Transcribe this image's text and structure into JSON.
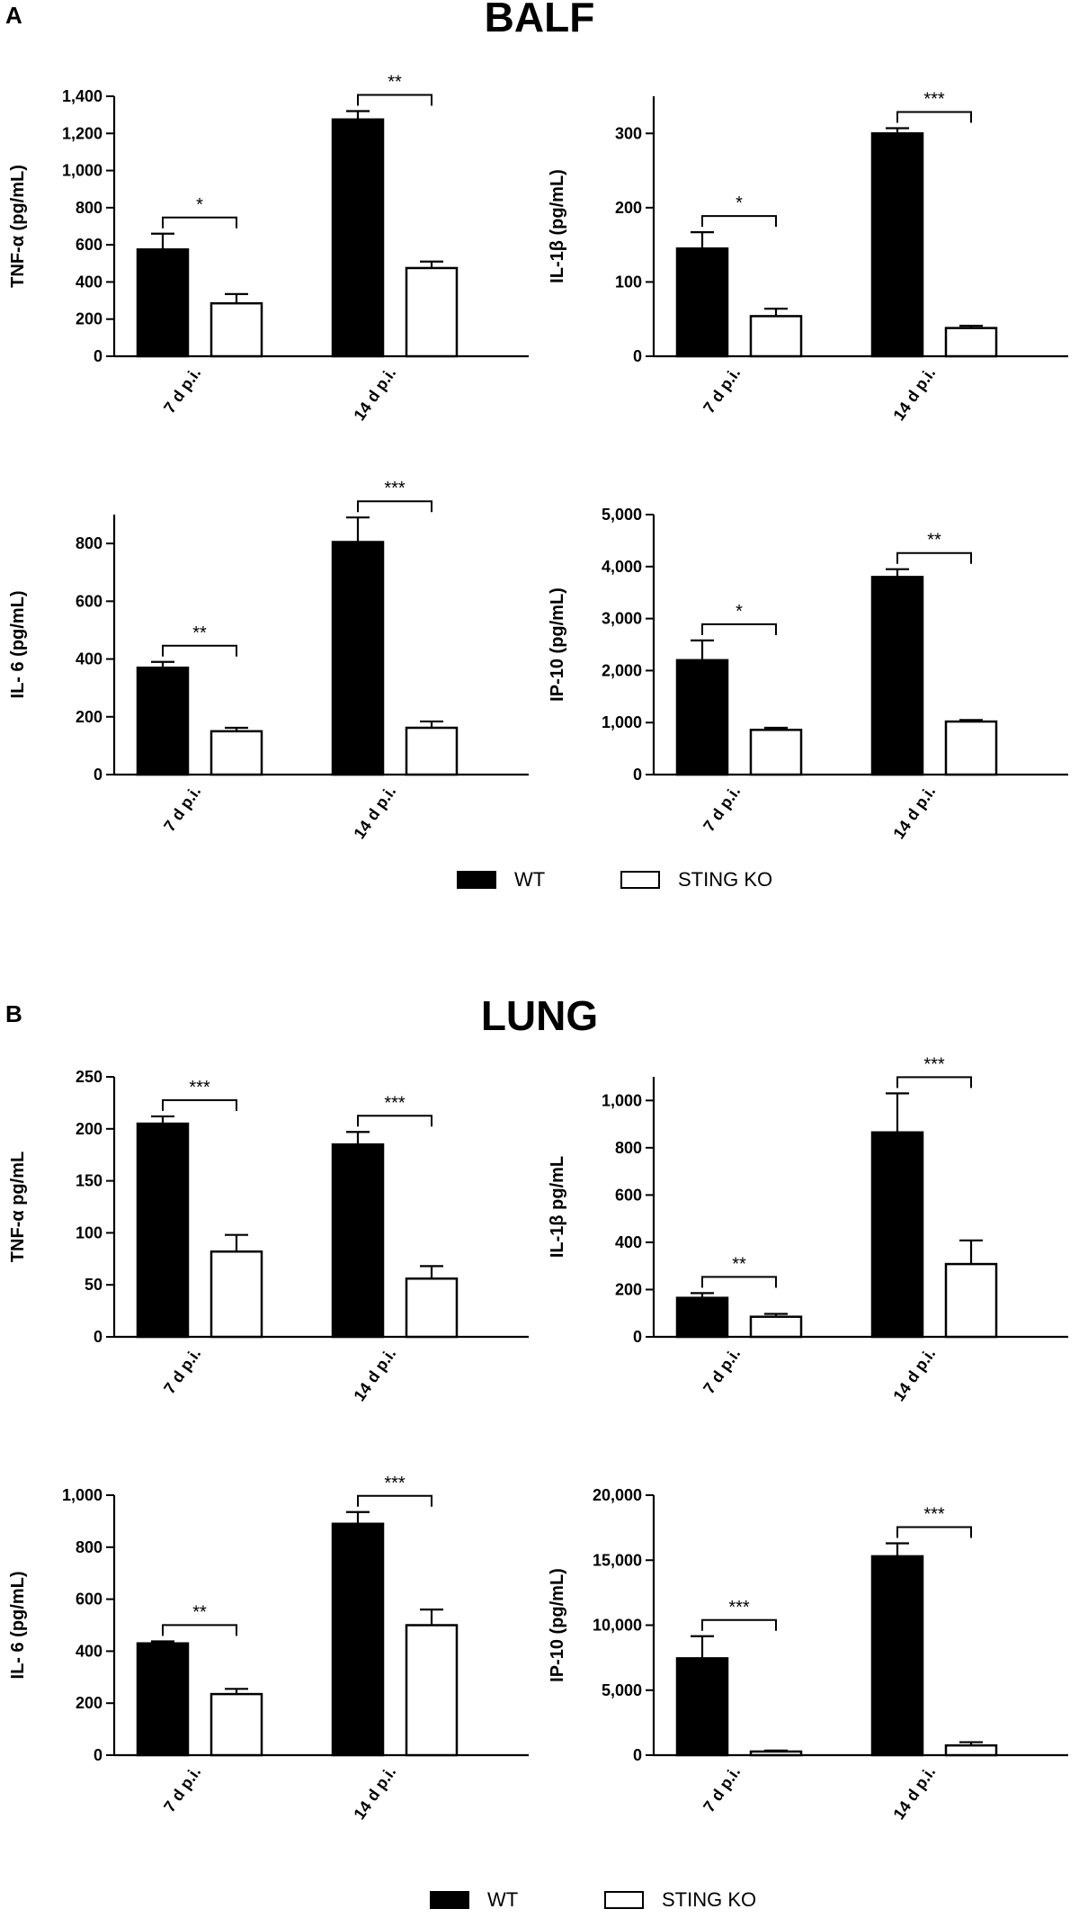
{
  "panels": [
    {
      "letter": "A",
      "title": "BALF"
    },
    {
      "letter": "B",
      "title": "LUNG"
    }
  ],
  "legend": {
    "wt": {
      "label": "WT",
      "color": "#000000"
    },
    "ko": {
      "label": "STING KO",
      "color": "#ffffff"
    }
  },
  "chart_data": [
    {
      "id": "balf-tnf",
      "type": "bar",
      "title": "",
      "xlabel": "",
      "ylabel": "TNF-α (pg/mL)",
      "categories": [
        "7 d p.i.",
        "14 d p.i."
      ],
      "ylim": [
        0,
        1400
      ],
      "yticks": [
        0,
        200,
        400,
        600,
        800,
        1000,
        1200,
        1400
      ],
      "ytick_labels": [
        "0",
        "200",
        "400",
        "600",
        "800",
        "1,000",
        "1,200",
        "1,400"
      ],
      "series": [
        {
          "name": "WT",
          "values": [
            575,
            1275
          ],
          "errors": [
            85,
            45
          ]
        },
        {
          "name": "STING KO",
          "values": [
            285,
            475
          ],
          "errors": [
            50,
            35
          ]
        }
      ],
      "significance": [
        "*",
        "**"
      ]
    },
    {
      "id": "balf-il1b",
      "type": "bar",
      "title": "",
      "xlabel": "",
      "ylabel": "IL-1β (pg/mL)",
      "categories": [
        "7 d p.i.",
        "14 d p.i."
      ],
      "ylim": [
        0,
        350
      ],
      "yticks": [
        0,
        100,
        200,
        300
      ],
      "ytick_labels": [
        "0",
        "100",
        "200",
        "300"
      ],
      "series": [
        {
          "name": "WT",
          "values": [
            145,
            300
          ],
          "errors": [
            22,
            7
          ]
        },
        {
          "name": "STING KO",
          "values": [
            54,
            38
          ],
          "errors": [
            10,
            3
          ]
        }
      ],
      "significance": [
        "*",
        "***"
      ]
    },
    {
      "id": "balf-il6",
      "type": "bar",
      "title": "",
      "xlabel": "",
      "ylabel": "IL- 6 (pg/mL)",
      "categories": [
        "7 d p.i.",
        "14 d p.i."
      ],
      "ylim": [
        0,
        900
      ],
      "yticks": [
        0,
        200,
        400,
        600,
        800
      ],
      "ytick_labels": [
        "0",
        "200",
        "400",
        "600",
        "800"
      ],
      "series": [
        {
          "name": "WT",
          "values": [
            370,
            805
          ],
          "errors": [
            20,
            85
          ]
        },
        {
          "name": "STING KO",
          "values": [
            150,
            162
          ],
          "errors": [
            12,
            22
          ]
        }
      ],
      "significance": [
        "**",
        "***"
      ]
    },
    {
      "id": "balf-ip10",
      "type": "bar",
      "title": "",
      "xlabel": "",
      "ylabel": "IP-10 (pg/mL)",
      "categories": [
        "7 d p.i.",
        "14 d p.i."
      ],
      "ylim": [
        0,
        5000
      ],
      "yticks": [
        0,
        1000,
        2000,
        3000,
        4000,
        5000
      ],
      "ytick_labels": [
        "0",
        "1,000",
        "2,000",
        "3,000",
        "4,000",
        "5,000"
      ],
      "series": [
        {
          "name": "WT",
          "values": [
            2200,
            3800
          ],
          "errors": [
            380,
            150
          ]
        },
        {
          "name": "STING KO",
          "values": [
            860,
            1020
          ],
          "errors": [
            40,
            30
          ]
        }
      ],
      "significance": [
        "*",
        "**"
      ]
    },
    {
      "id": "lung-tnf",
      "type": "bar",
      "title": "",
      "xlabel": "",
      "ylabel": "TNF-α pg/mL",
      "categories": [
        "7 d p.i.",
        "14 d p.i."
      ],
      "ylim": [
        0,
        250
      ],
      "yticks": [
        0,
        50,
        100,
        150,
        200,
        250
      ],
      "ytick_labels": [
        "0",
        "50",
        "100",
        "150",
        "200",
        "250"
      ],
      "series": [
        {
          "name": "WT",
          "values": [
            205,
            185
          ],
          "errors": [
            7,
            12
          ]
        },
        {
          "name": "STING KO",
          "values": [
            82,
            56
          ],
          "errors": [
            16,
            12
          ]
        }
      ],
      "significance": [
        "***",
        "***"
      ]
    },
    {
      "id": "lung-il1b",
      "type": "bar",
      "title": "",
      "xlabel": "",
      "ylabel": "IL-1β pg/mL",
      "categories": [
        "7 d p.i.",
        "14 d p.i."
      ],
      "ylim": [
        0,
        1100
      ],
      "yticks": [
        0,
        200,
        400,
        600,
        800,
        1000
      ],
      "ytick_labels": [
        "0",
        "200",
        "400",
        "600",
        "800",
        "1,000"
      ],
      "series": [
        {
          "name": "WT",
          "values": [
            165,
            865
          ],
          "errors": [
            20,
            165
          ]
        },
        {
          "name": "STING KO",
          "values": [
            85,
            308
          ],
          "errors": [
            12,
            100
          ]
        }
      ],
      "significance": [
        "**",
        "***"
      ]
    },
    {
      "id": "lung-il6",
      "type": "bar",
      "title": "",
      "xlabel": "",
      "ylabel": "IL- 6 (pg/mL)",
      "categories": [
        "7 d p.i.",
        "14 d p.i."
      ],
      "ylim": [
        0,
        1000
      ],
      "yticks": [
        0,
        200,
        400,
        600,
        800,
        1000
      ],
      "ytick_labels": [
        "0",
        "200",
        "400",
        "600",
        "800",
        "1,000"
      ],
      "series": [
        {
          "name": "WT",
          "values": [
            430,
            890
          ],
          "errors": [
            8,
            45
          ]
        },
        {
          "name": "STING KO",
          "values": [
            235,
            500
          ],
          "errors": [
            20,
            60
          ]
        }
      ],
      "significance": [
        "**",
        "***"
      ]
    },
    {
      "id": "lung-ip10",
      "type": "bar",
      "title": "",
      "xlabel": "",
      "ylabel": "IP-10 (pg/mL)",
      "categories": [
        "7 d p.i.",
        "14 d p.i."
      ],
      "ylim": [
        0,
        20000
      ],
      "yticks": [
        0,
        5000,
        10000,
        15000,
        20000
      ],
      "ytick_labels": [
        "0",
        "5,000",
        "10,000",
        "15,000",
        "20,000"
      ],
      "series": [
        {
          "name": "WT",
          "values": [
            7450,
            15300
          ],
          "errors": [
            1700,
            1000
          ]
        },
        {
          "name": "STING KO",
          "values": [
            280,
            750
          ],
          "errors": [
            80,
            250
          ]
        }
      ],
      "significance": [
        "***",
        "***"
      ]
    }
  ]
}
